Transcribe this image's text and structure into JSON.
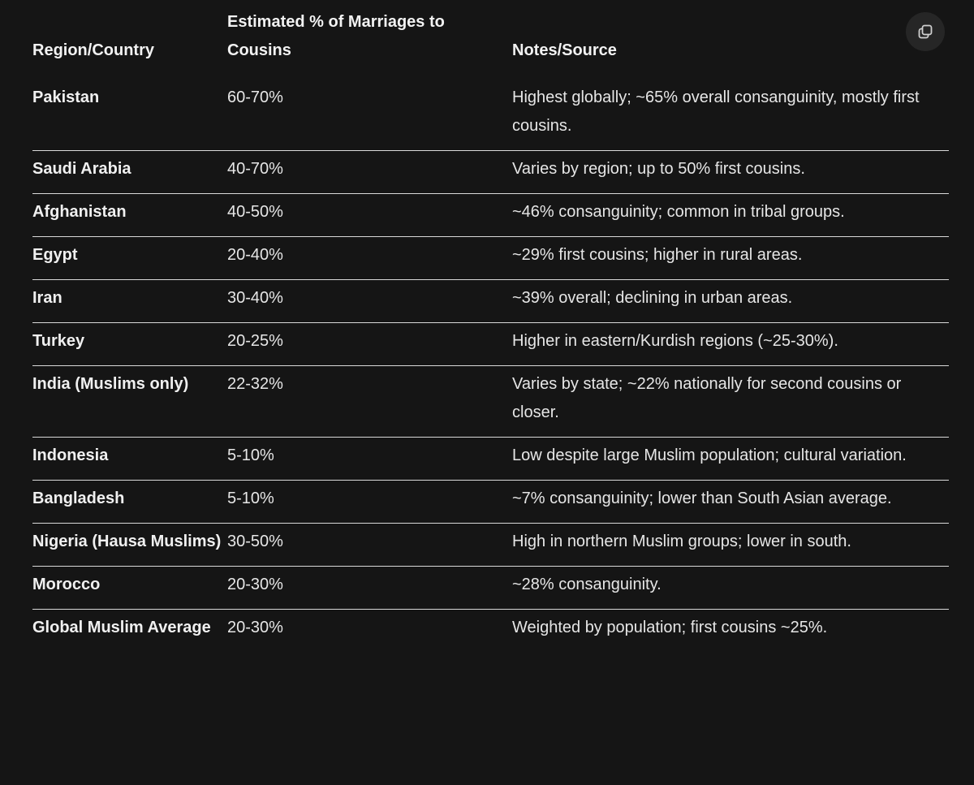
{
  "table": {
    "headers": [
      "Region/Country",
      "Estimated % of Marriages to Cousins",
      "Notes/Source"
    ],
    "rows": [
      [
        "Pakistan",
        "60-70%",
        "Highest globally; ~65% overall consanguinity, mostly first cousins."
      ],
      [
        "Saudi Arabia",
        "40-70%",
        "Varies by region; up to 50% first cousins."
      ],
      [
        "Afghanistan",
        "40-50%",
        "~46% consanguinity; common in tribal groups."
      ],
      [
        "Egypt",
        "20-40%",
        "~29% first cousins; higher in rural areas."
      ],
      [
        "Iran",
        "30-40%",
        "~39% overall; declining in urban areas."
      ],
      [
        "Turkey",
        "20-25%",
        "Higher in eastern/Kurdish regions (~25-30%)."
      ],
      [
        "India (Muslims only)",
        "22-32%",
        "Varies by state; ~22% nationally for second cousins or closer."
      ],
      [
        "Indonesia",
        "5-10%",
        "Low despite large Muslim population; cultural variation."
      ],
      [
        "Bangladesh",
        "5-10%",
        "~7% consanguinity; lower than South Asian average."
      ],
      [
        "Nigeria (Hausa Muslims)",
        "30-50%",
        "High in northern Muslim groups; lower in south."
      ],
      [
        "Morocco",
        "20-30%",
        "~28% consanguinity."
      ],
      [
        "Global Muslim Average",
        "20-30%",
        "Weighted by population; first cousins ~25%."
      ]
    ]
  },
  "copy_icon": "copy-icon",
  "colors": {
    "background": "#151515",
    "text": "#e6e6e6",
    "divider": "#d9d9d9",
    "button_bg": "#262626"
  }
}
